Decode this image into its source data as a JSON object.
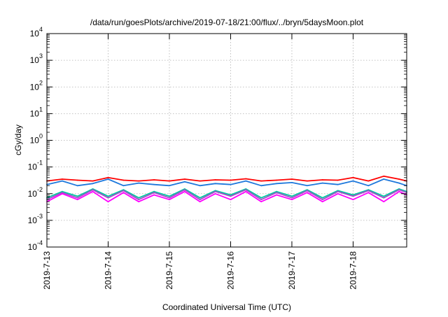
{
  "chart_data": {
    "type": "line",
    "title": "/data/run/goesPlots/archive/2019-07-18/21:00/flux/../bryn/5daysMoon.plot",
    "xlabel": "Coordinated Universal Time (UTC)",
    "ylabel": "cGy/day",
    "yscale": "log",
    "ylim": [
      0.0001,
      10000
    ],
    "xlim": [
      "2019-07-13 00:00",
      "2019-07-18 21:00"
    ],
    "grid": true,
    "legend": "none",
    "x_tick_labels": [
      "2019-7-13",
      "2019-7-14",
      "2019-7-15",
      "2019-7-16",
      "2019-7-17",
      "2019-7-18"
    ],
    "y_ticks": [
      {
        "base": "10",
        "exp": "-4"
      },
      {
        "base": "10",
        "exp": "-3"
      },
      {
        "base": "10",
        "exp": "-2"
      },
      {
        "base": "10",
        "exp": "-1"
      },
      {
        "base": "10",
        "exp": "0"
      },
      {
        "base": "10",
        "exp": "1"
      },
      {
        "base": "10",
        "exp": "2"
      },
      {
        "base": "10",
        "exp": "3"
      },
      {
        "base": "10",
        "exp": "4"
      }
    ],
    "series": [
      {
        "color": "#ff0000",
        "x": [
          "2019-07-13 00:00",
          "2019-07-13 06:00",
          "2019-07-13 12:00",
          "2019-07-13 18:00",
          "2019-07-14 00:00",
          "2019-07-14 06:00",
          "2019-07-14 12:00",
          "2019-07-14 18:00",
          "2019-07-15 00:00",
          "2019-07-15 06:00",
          "2019-07-15 12:00",
          "2019-07-15 18:00",
          "2019-07-16 00:00",
          "2019-07-16 06:00",
          "2019-07-16 12:00",
          "2019-07-16 18:00",
          "2019-07-17 00:00",
          "2019-07-17 06:00",
          "2019-07-17 12:00",
          "2019-07-17 18:00",
          "2019-07-18 00:00",
          "2019-07-18 06:00",
          "2019-07-18 12:00",
          "2019-07-18 18:00",
          "2019-07-18 21:00"
        ],
        "values": [
          0.03,
          0.035,
          0.032,
          0.03,
          0.04,
          0.032,
          0.03,
          0.033,
          0.03,
          0.035,
          0.03,
          0.033,
          0.032,
          0.036,
          0.03,
          0.032,
          0.035,
          0.03,
          0.033,
          0.032,
          0.04,
          0.03,
          0.045,
          0.035,
          0.03
        ]
      },
      {
        "color": "#1e78dc",
        "x": [
          "2019-07-13 00:00",
          "2019-07-13 06:00",
          "2019-07-13 12:00",
          "2019-07-13 18:00",
          "2019-07-14 00:00",
          "2019-07-14 06:00",
          "2019-07-14 12:00",
          "2019-07-14 18:00",
          "2019-07-15 00:00",
          "2019-07-15 06:00",
          "2019-07-15 12:00",
          "2019-07-15 18:00",
          "2019-07-16 00:00",
          "2019-07-16 06:00",
          "2019-07-16 12:00",
          "2019-07-16 18:00",
          "2019-07-17 00:00",
          "2019-07-17 06:00",
          "2019-07-17 12:00",
          "2019-07-17 18:00",
          "2019-07-18 00:00",
          "2019-07-18 06:00",
          "2019-07-18 12:00",
          "2019-07-18 18:00",
          "2019-07-18 21:00"
        ],
        "values": [
          0.022,
          0.03,
          0.02,
          0.024,
          0.035,
          0.02,
          0.025,
          0.022,
          0.02,
          0.028,
          0.02,
          0.024,
          0.022,
          0.03,
          0.02,
          0.024,
          0.026,
          0.02,
          0.025,
          0.022,
          0.03,
          0.02,
          0.035,
          0.025,
          0.02
        ]
      },
      {
        "color": "#00c8a0",
        "x": [
          "2019-07-13 00:00",
          "2019-07-13 06:00",
          "2019-07-13 12:00",
          "2019-07-13 18:00",
          "2019-07-14 00:00",
          "2019-07-14 06:00",
          "2019-07-14 12:00",
          "2019-07-14 18:00",
          "2019-07-15 00:00",
          "2019-07-15 06:00",
          "2019-07-15 12:00",
          "2019-07-15 18:00",
          "2019-07-16 00:00",
          "2019-07-16 06:00",
          "2019-07-16 12:00",
          "2019-07-16 18:00",
          "2019-07-17 00:00",
          "2019-07-17 06:00",
          "2019-07-17 12:00",
          "2019-07-17 18:00",
          "2019-07-18 00:00",
          "2019-07-18 06:00",
          "2019-07-18 12:00",
          "2019-07-18 18:00",
          "2019-07-18 21:00"
        ],
        "values": [
          0.007,
          0.012,
          0.008,
          0.015,
          0.008,
          0.014,
          0.007,
          0.012,
          0.008,
          0.015,
          0.007,
          0.013,
          0.009,
          0.015,
          0.007,
          0.012,
          0.008,
          0.014,
          0.007,
          0.013,
          0.009,
          0.014,
          0.008,
          0.015,
          0.012
        ]
      },
      {
        "color": "#a050c8",
        "x": [
          "2019-07-13 00:00",
          "2019-07-13 06:00",
          "2019-07-13 12:00",
          "2019-07-13 18:00",
          "2019-07-14 00:00",
          "2019-07-14 06:00",
          "2019-07-14 12:00",
          "2019-07-14 18:00",
          "2019-07-15 00:00",
          "2019-07-15 06:00",
          "2019-07-15 12:00",
          "2019-07-15 18:00",
          "2019-07-16 00:00",
          "2019-07-16 06:00",
          "2019-07-16 12:00",
          "2019-07-16 18:00",
          "2019-07-17 00:00",
          "2019-07-17 06:00",
          "2019-07-17 12:00",
          "2019-07-17 18:00",
          "2019-07-18 00:00",
          "2019-07-18 06:00",
          "2019-07-18 12:00",
          "2019-07-18 18:00",
          "2019-07-18 21:00"
        ],
        "values": [
          0.006,
          0.011,
          0.007,
          0.014,
          0.007,
          0.013,
          0.006,
          0.011,
          0.007,
          0.014,
          0.006,
          0.012,
          0.008,
          0.014,
          0.006,
          0.011,
          0.007,
          0.013,
          0.006,
          0.012,
          0.008,
          0.013,
          0.007,
          0.014,
          0.011
        ]
      },
      {
        "color": "#ff00ff",
        "x": [
          "2019-07-13 00:00",
          "2019-07-13 06:00",
          "2019-07-13 12:00",
          "2019-07-13 18:00",
          "2019-07-14 00:00",
          "2019-07-14 06:00",
          "2019-07-14 12:00",
          "2019-07-14 18:00",
          "2019-07-15 00:00",
          "2019-07-15 06:00",
          "2019-07-15 12:00",
          "2019-07-15 18:00",
          "2019-07-16 00:00",
          "2019-07-16 06:00",
          "2019-07-16 12:00",
          "2019-07-16 18:00",
          "2019-07-17 00:00",
          "2019-07-17 06:00",
          "2019-07-17 12:00",
          "2019-07-17 18:00",
          "2019-07-18 00:00",
          "2019-07-18 06:00",
          "2019-07-18 12:00",
          "2019-07-18 18:00",
          "2019-07-18 21:00"
        ],
        "values": [
          0.005,
          0.01,
          0.006,
          0.012,
          0.005,
          0.011,
          0.005,
          0.009,
          0.006,
          0.012,
          0.005,
          0.01,
          0.006,
          0.012,
          0.005,
          0.009,
          0.006,
          0.011,
          0.005,
          0.01,
          0.006,
          0.011,
          0.005,
          0.012,
          0.009
        ]
      }
    ]
  }
}
